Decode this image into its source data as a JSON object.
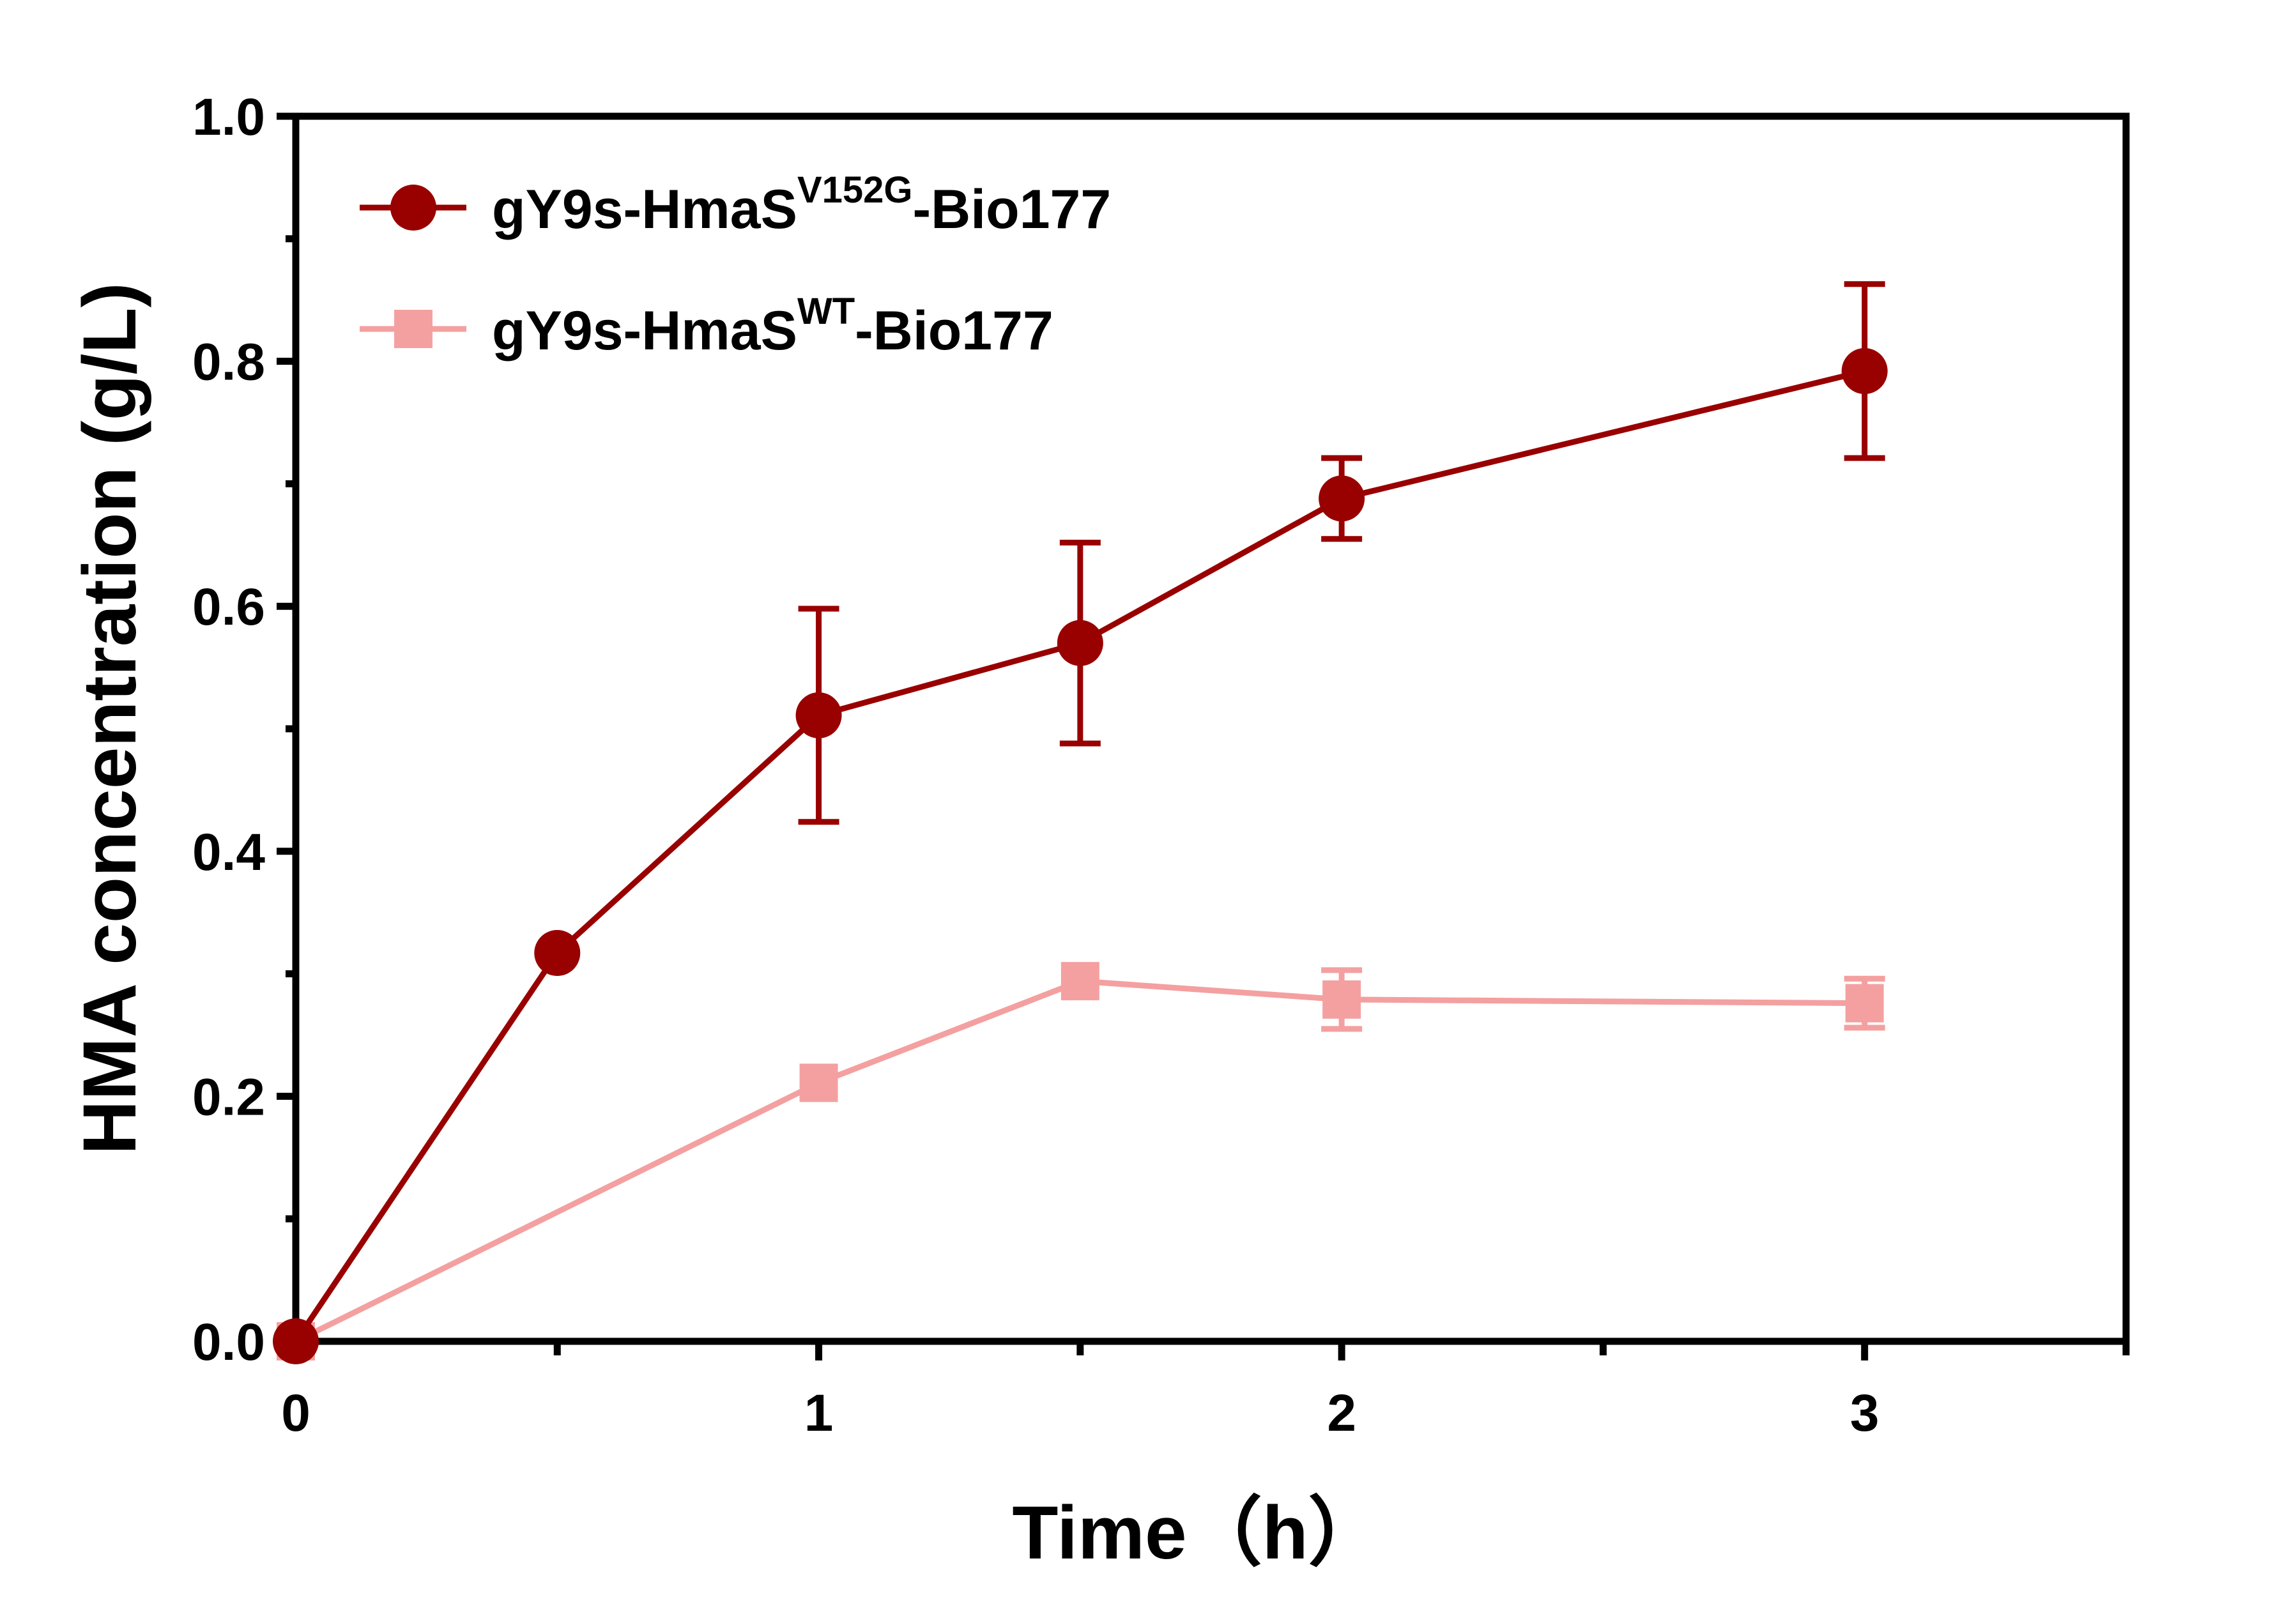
{
  "chart_data": {
    "type": "line",
    "xlabel": "Time（h）",
    "ylabel": "HMA concentration (g/L)",
    "xlim": [
      0,
      3.5
    ],
    "ylim": [
      0,
      1.0
    ],
    "x_ticks": [
      0,
      1,
      2,
      3
    ],
    "x_tick_labels": [
      "0",
      "1",
      "2",
      "3"
    ],
    "y_ticks": [
      0.0,
      0.2,
      0.4,
      0.6,
      0.8,
      1.0
    ],
    "y_tick_labels": [
      "0.0",
      "0.2",
      "0.4",
      "0.6",
      "0.8",
      "1.0"
    ],
    "grid": false,
    "legend_position": "top-left",
    "series": [
      {
        "label_main": "gY9s-HmaS",
        "label_sup": "V152G",
        "label_suffix": "-Bio177",
        "marker": "circle",
        "color": "#990000",
        "x": [
          0,
          0.5,
          1,
          1.5,
          2,
          3
        ],
        "y": [
          0.0,
          0.317,
          0.511,
          0.57,
          0.688,
          0.792
        ],
        "error": [
          0.0,
          0.0,
          0.087,
          0.082,
          0.033,
          0.071
        ]
      },
      {
        "label_main": "gY9s-HmaS",
        "label_sup": "WT",
        "label_suffix": "-Bio177",
        "marker": "square",
        "color": "#F4A0A0",
        "x": [
          0,
          1,
          1.5,
          2,
          3
        ],
        "y": [
          0.0,
          0.211,
          0.294,
          0.279,
          0.276
        ],
        "error": [
          0.0,
          0.0,
          0.0,
          0.024,
          0.02
        ]
      }
    ]
  }
}
